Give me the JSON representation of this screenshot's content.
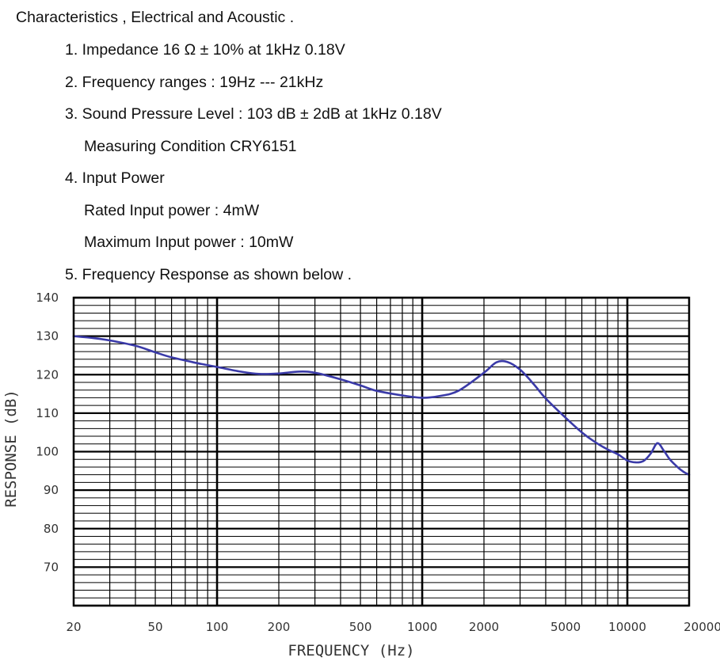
{
  "spec": {
    "title": "Characteristics , Electrical and Acoustic .",
    "item1": "1. Impedance  16 Ω ± 10% at 1kHz 0.18V",
    "item2": "2. Frequency ranges : 19Hz --- 21kHz",
    "item3": "3. Sound Pressure Level : 103 dB ± 2dB at 1kHz 0.18V",
    "item3_note": "Measuring Condition CRY6151",
    "item4": "4. Input Power",
    "item4_rated": "Rated Input power : 4mW",
    "item4_max": "Maximum Input power : 10mW",
    "item5": "5. Frequency Response as shown below ."
  },
  "chart_data": {
    "type": "line",
    "title": "",
    "xlabel": "FREQUENCY (Hz)",
    "ylabel": "RESPONSE (dB)",
    "xscale": "log",
    "xlim": [
      20,
      20000
    ],
    "ylim": [
      60,
      140
    ],
    "x_ticks": [
      20,
      50,
      100,
      200,
      500,
      1000,
      2000,
      5000,
      10000,
      20000
    ],
    "y_ticks": [
      140,
      130,
      120,
      110,
      100,
      90,
      80,
      70
    ],
    "grid": true,
    "line_color": "#3a3aa8",
    "series": [
      {
        "x": [
          20,
          25,
          30,
          40,
          50,
          60,
          80,
          100,
          130,
          160,
          200,
          250,
          300,
          400,
          500,
          600,
          800,
          1000,
          1200,
          1500,
          2000,
          2300,
          2600,
          3000,
          3500,
          4000,
          5000,
          6000,
          7000,
          8000,
          9000,
          10000,
          11000,
          12000,
          13000,
          14000,
          15000,
          16000,
          17000,
          18000,
          19000,
          20000
        ],
        "y": [
          130,
          129.5,
          128.9,
          127.5,
          125.8,
          124.5,
          123,
          122,
          120.8,
          120.2,
          120.3,
          120.8,
          120.5,
          118.8,
          117.2,
          115.8,
          114.6,
          114,
          114.4,
          115.8,
          120.5,
          123.2,
          123.3,
          121.3,
          117.5,
          113.8,
          108.8,
          105,
          102.4,
          100.6,
          99.3,
          97.7,
          97.2,
          97.6,
          99.5,
          102.2,
          100.4,
          98.2,
          96.7,
          95.5,
          94.6,
          94
        ]
      }
    ]
  }
}
